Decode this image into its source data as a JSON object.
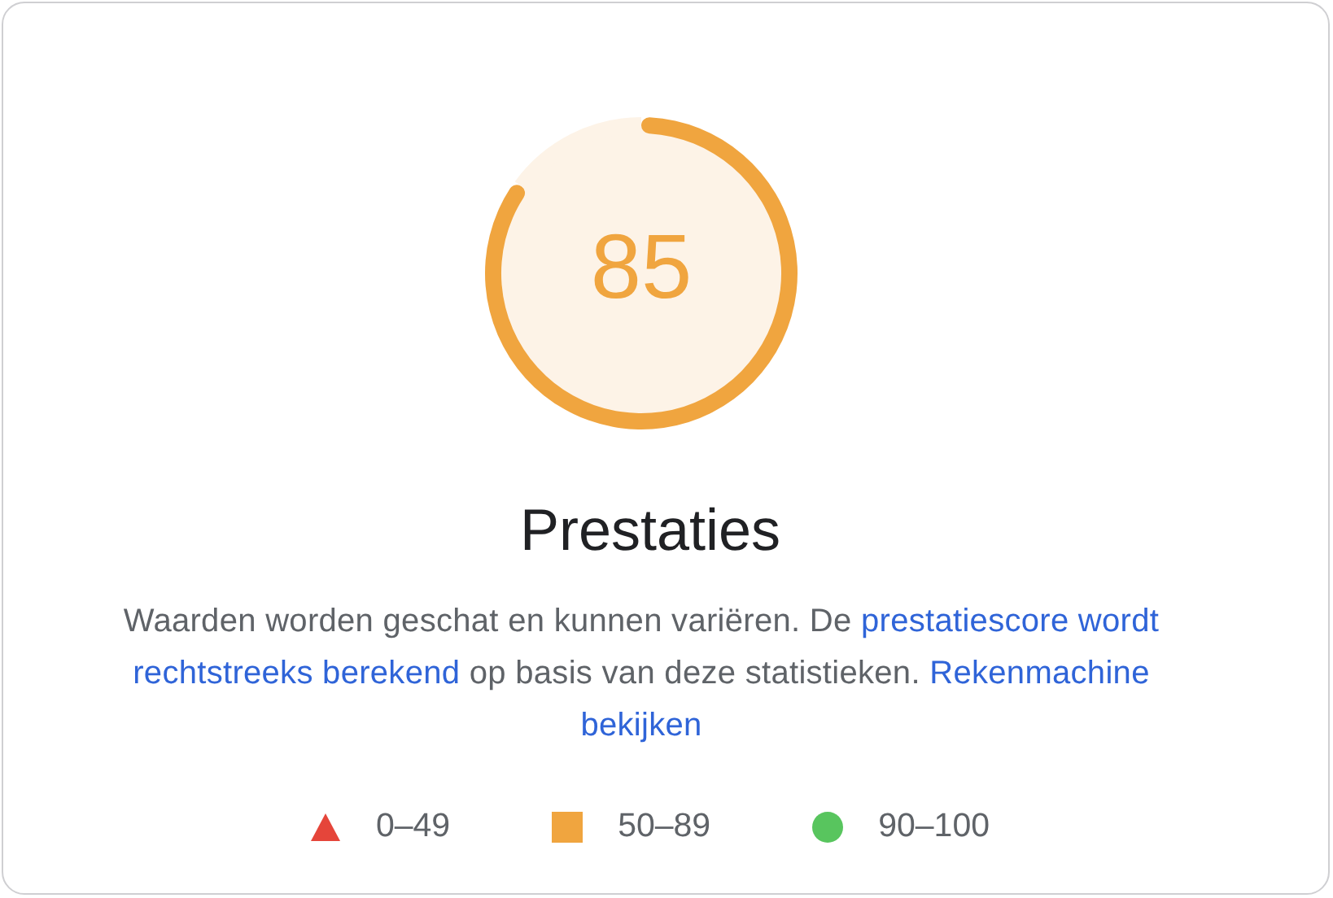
{
  "chart_data": {
    "type": "donut",
    "title": "Prestaties",
    "categories": [
      null,
      null
    ],
    "values": [
      85,
      15
    ],
    "colors": [
      "#f0a53f",
      "#fdf3e7"
    ],
    "value_labels": [
      "85",
      null
    ],
    "annotations": [
      "Waarden worden geschat en kunnen variëren. De",
      "prestatiescore wordt",
      "rechtstreeks berekend",
      "op basis van deze statistieken.",
      "Rekenmachine",
      "bekijken",
      "0–49",
      "50–89",
      "90–100"
    ]
  }
}
